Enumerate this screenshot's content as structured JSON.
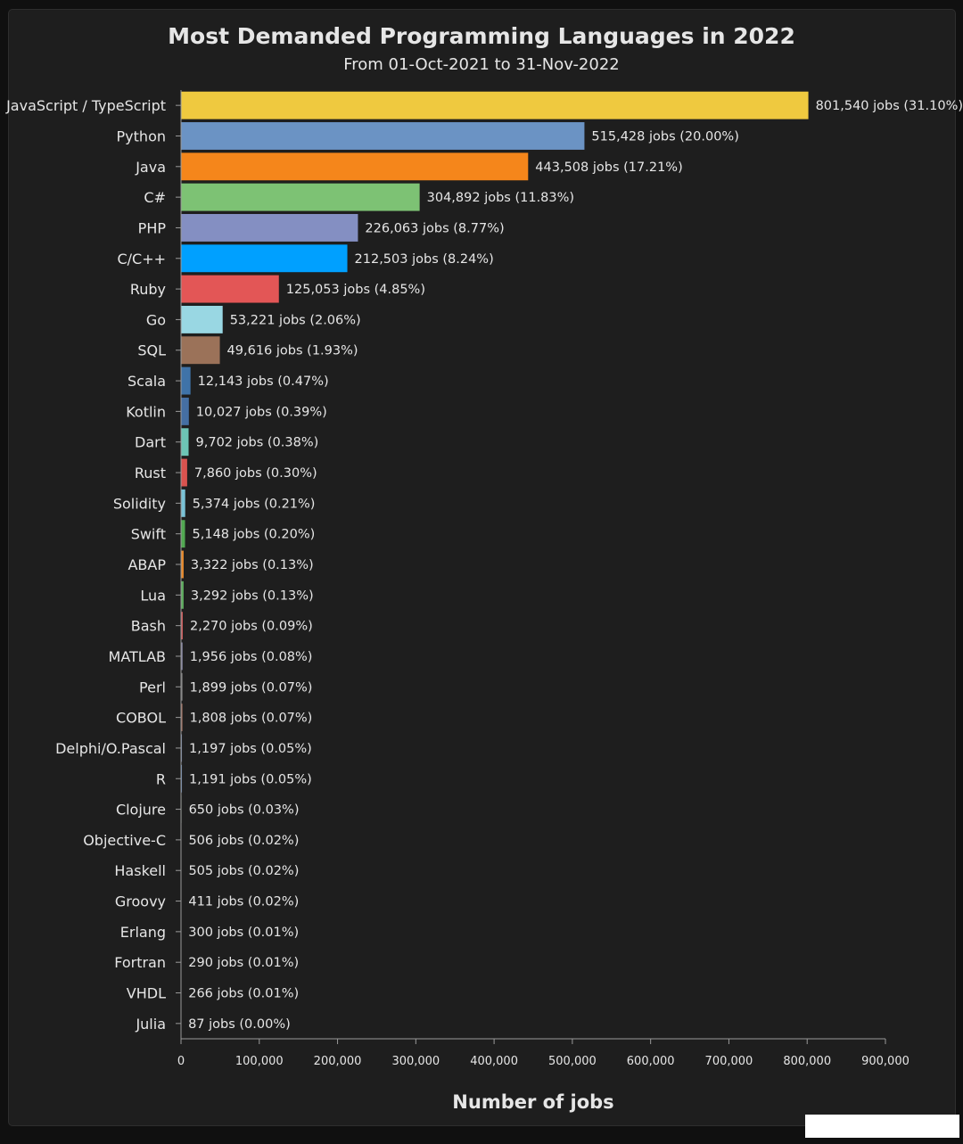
{
  "chart_data": {
    "type": "bar",
    "orientation": "horizontal",
    "title": "Most Demanded Programming Languages in 2022",
    "subtitle": "From 01-Oct-2021 to 31-Nov-2022",
    "xlabel": "Number of jobs",
    "xlim": [
      0,
      900000
    ],
    "x_ticks": [
      "0",
      "100,000",
      "200,000",
      "300,000",
      "400,000",
      "500,000",
      "600,000",
      "700,000",
      "800,000",
      "900,000"
    ],
    "grid": false,
    "legend": "none",
    "categories": [
      "JavaScript / TypeScript",
      "Python",
      "Java",
      "C#",
      "PHP",
      "C/C++",
      "Ruby",
      "Go",
      "SQL",
      "Scala",
      "Kotlin",
      "Dart",
      "Rust",
      "Solidity",
      "Swift",
      "ABAP",
      "Lua",
      "Bash",
      "MATLAB",
      "Perl",
      "COBOL",
      "Delphi/O.Pascal",
      "R",
      "Clojure",
      "Objective-C",
      "Haskell",
      "Groovy",
      "Erlang",
      "Fortran",
      "VHDL",
      "Julia"
    ],
    "values": [
      801540,
      515428,
      443508,
      304892,
      226063,
      212503,
      125053,
      53221,
      49616,
      12143,
      10027,
      9702,
      7860,
      5374,
      5148,
      3322,
      3292,
      2270,
      1956,
      1899,
      1808,
      1197,
      1191,
      650,
      506,
      505,
      411,
      300,
      290,
      266,
      87
    ],
    "data_labels": [
      "801,540 jobs (31.10%)",
      "515,428 jobs (20.00%)",
      "443,508 jobs (17.21%)",
      "304,892 jobs (11.83%)",
      "226,063 jobs (8.77%)",
      "212,503 jobs (8.24%)",
      "125,053 jobs (4.85%)",
      "53,221 jobs (2.06%)",
      "49,616 jobs (1.93%)",
      "12,143 jobs (0.47%)",
      "10,027 jobs (0.39%)",
      "9,702 jobs (0.38%)",
      "7,860 jobs (0.30%)",
      "5,374 jobs (0.21%)",
      "5,148 jobs (0.20%)",
      "3,322 jobs (0.13%)",
      "3,292 jobs (0.13%)",
      "2,270 jobs (0.09%)",
      "1,956 jobs (0.08%)",
      "1,899 jobs (0.07%)",
      "1,808 jobs (0.07%)",
      "1,197 jobs (0.05%)",
      "1,191 jobs (0.05%)",
      "650 jobs (0.03%)",
      "506 jobs (0.02%)",
      "505 jobs (0.02%)",
      "411 jobs (0.02%)",
      "300 jobs (0.01%)",
      "290 jobs (0.01%)",
      "266 jobs (0.01%)",
      "87 jobs (0.00%)"
    ],
    "colors": [
      "#efc93f",
      "#6b93c4",
      "#f5861b",
      "#7dc274",
      "#848fc2",
      "#00a0ff",
      "#e35656",
      "#99d7e3",
      "#9b7259",
      "#3f73a8",
      "#456fa3",
      "#6dc4b5",
      "#d9534f",
      "#7ac2d6",
      "#52a852",
      "#e88b2e",
      "#5fae5f",
      "#c85a5a",
      "#8a8aa8",
      "#7a7a7a",
      "#a07060",
      "#7080a0",
      "#6080b0",
      "#70a070",
      "#a0a070",
      "#8070a0",
      "#5a9a9a",
      "#a06060",
      "#7090a0",
      "#908070",
      "#a070a0"
    ]
  },
  "theme": {
    "background": "#1e1e1e",
    "text": "#e6e6e6",
    "axis": "#9a9a9a"
  }
}
